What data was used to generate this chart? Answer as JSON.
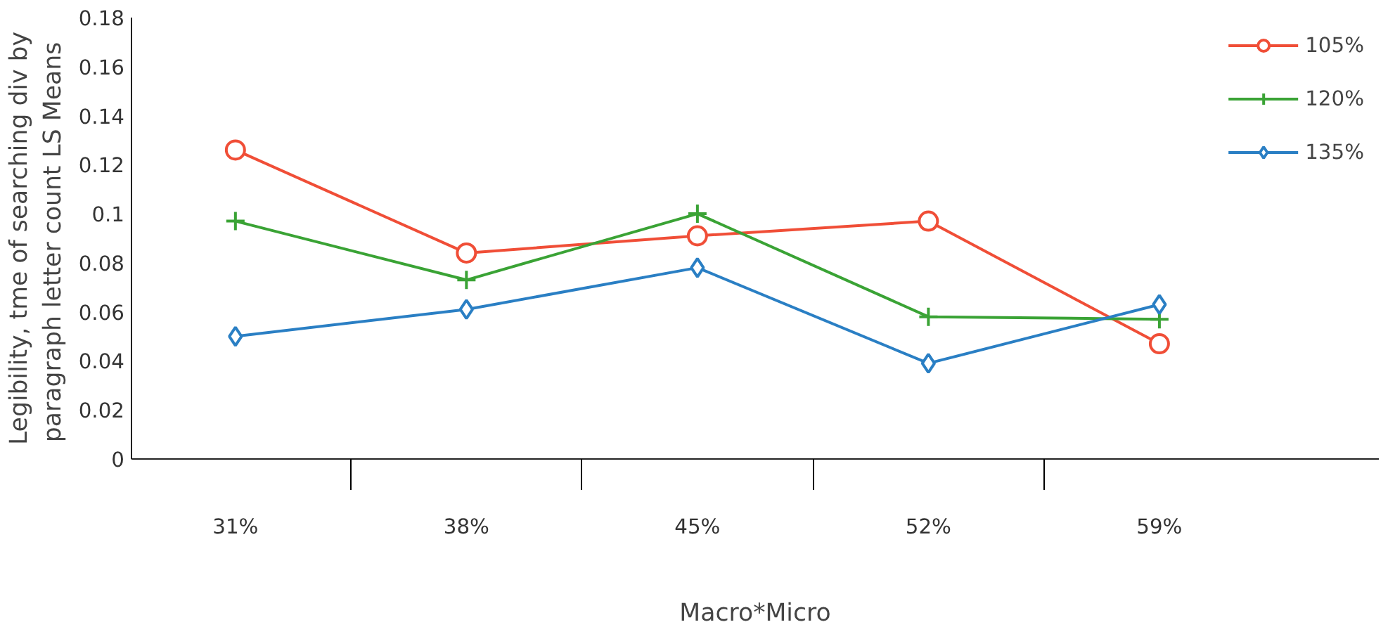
{
  "chart_data": {
    "type": "line",
    "xlabel": "Macro*Micro",
    "ylabel": "Legibility, tme of searching div by\nparagraph letter count  LS Means",
    "categories": [
      "31%",
      "38%",
      "45%",
      "52%",
      "59%"
    ],
    "series": [
      {
        "name": "105%",
        "color": "#f04e37",
        "marker": "circle",
        "values": [
          0.126,
          0.084,
          0.091,
          0.097,
          0.047
        ]
      },
      {
        "name": "120%",
        "color": "#3aa335",
        "marker": "cross",
        "values": [
          0.097,
          0.073,
          0.1,
          0.058,
          0.057
        ]
      },
      {
        "name": "135%",
        "color": "#2a7fc4",
        "marker": "diamond",
        "values": [
          0.05,
          0.061,
          0.078,
          0.039,
          0.063
        ]
      }
    ],
    "ylim": [
      0,
      0.18
    ],
    "yticks": [
      0,
      0.02,
      0.04,
      0.06,
      0.08,
      0.1,
      0.12,
      0.14,
      0.16,
      0.18
    ],
    "grid": false,
    "legend": "top right",
    "line_style": "solid"
  }
}
